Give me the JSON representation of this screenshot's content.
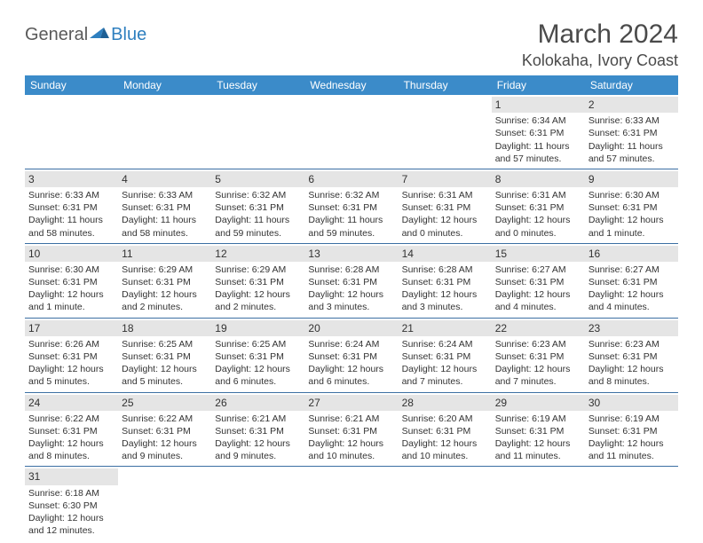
{
  "brand": {
    "part1": "General",
    "part2": "Blue"
  },
  "title": "March 2024",
  "location": "Kolokaha, Ivory Coast",
  "colors": {
    "header_bg": "#3b8bc9",
    "row_border": "#3b6fa3",
    "daynum_bg": "#e5e5e5",
    "text": "#333333",
    "title_text": "#4a4a4a",
    "brand_gray": "#5a5a5a",
    "brand_blue": "#2e7fbf"
  },
  "weekdays": [
    "Sunday",
    "Monday",
    "Tuesday",
    "Wednesday",
    "Thursday",
    "Friday",
    "Saturday"
  ],
  "weeks": [
    [
      null,
      null,
      null,
      null,
      null,
      {
        "n": "1",
        "sunrise": "Sunrise: 6:34 AM",
        "sunset": "Sunset: 6:31 PM",
        "day1": "Daylight: 11 hours",
        "day2": "and 57 minutes."
      },
      {
        "n": "2",
        "sunrise": "Sunrise: 6:33 AM",
        "sunset": "Sunset: 6:31 PM",
        "day1": "Daylight: 11 hours",
        "day2": "and 57 minutes."
      }
    ],
    [
      {
        "n": "3",
        "sunrise": "Sunrise: 6:33 AM",
        "sunset": "Sunset: 6:31 PM",
        "day1": "Daylight: 11 hours",
        "day2": "and 58 minutes."
      },
      {
        "n": "4",
        "sunrise": "Sunrise: 6:33 AM",
        "sunset": "Sunset: 6:31 PM",
        "day1": "Daylight: 11 hours",
        "day2": "and 58 minutes."
      },
      {
        "n": "5",
        "sunrise": "Sunrise: 6:32 AM",
        "sunset": "Sunset: 6:31 PM",
        "day1": "Daylight: 11 hours",
        "day2": "and 59 minutes."
      },
      {
        "n": "6",
        "sunrise": "Sunrise: 6:32 AM",
        "sunset": "Sunset: 6:31 PM",
        "day1": "Daylight: 11 hours",
        "day2": "and 59 minutes."
      },
      {
        "n": "7",
        "sunrise": "Sunrise: 6:31 AM",
        "sunset": "Sunset: 6:31 PM",
        "day1": "Daylight: 12 hours",
        "day2": "and 0 minutes."
      },
      {
        "n": "8",
        "sunrise": "Sunrise: 6:31 AM",
        "sunset": "Sunset: 6:31 PM",
        "day1": "Daylight: 12 hours",
        "day2": "and 0 minutes."
      },
      {
        "n": "9",
        "sunrise": "Sunrise: 6:30 AM",
        "sunset": "Sunset: 6:31 PM",
        "day1": "Daylight: 12 hours",
        "day2": "and 1 minute."
      }
    ],
    [
      {
        "n": "10",
        "sunrise": "Sunrise: 6:30 AM",
        "sunset": "Sunset: 6:31 PM",
        "day1": "Daylight: 12 hours",
        "day2": "and 1 minute."
      },
      {
        "n": "11",
        "sunrise": "Sunrise: 6:29 AM",
        "sunset": "Sunset: 6:31 PM",
        "day1": "Daylight: 12 hours",
        "day2": "and 2 minutes."
      },
      {
        "n": "12",
        "sunrise": "Sunrise: 6:29 AM",
        "sunset": "Sunset: 6:31 PM",
        "day1": "Daylight: 12 hours",
        "day2": "and 2 minutes."
      },
      {
        "n": "13",
        "sunrise": "Sunrise: 6:28 AM",
        "sunset": "Sunset: 6:31 PM",
        "day1": "Daylight: 12 hours",
        "day2": "and 3 minutes."
      },
      {
        "n": "14",
        "sunrise": "Sunrise: 6:28 AM",
        "sunset": "Sunset: 6:31 PM",
        "day1": "Daylight: 12 hours",
        "day2": "and 3 minutes."
      },
      {
        "n": "15",
        "sunrise": "Sunrise: 6:27 AM",
        "sunset": "Sunset: 6:31 PM",
        "day1": "Daylight: 12 hours",
        "day2": "and 4 minutes."
      },
      {
        "n": "16",
        "sunrise": "Sunrise: 6:27 AM",
        "sunset": "Sunset: 6:31 PM",
        "day1": "Daylight: 12 hours",
        "day2": "and 4 minutes."
      }
    ],
    [
      {
        "n": "17",
        "sunrise": "Sunrise: 6:26 AM",
        "sunset": "Sunset: 6:31 PM",
        "day1": "Daylight: 12 hours",
        "day2": "and 5 minutes."
      },
      {
        "n": "18",
        "sunrise": "Sunrise: 6:25 AM",
        "sunset": "Sunset: 6:31 PM",
        "day1": "Daylight: 12 hours",
        "day2": "and 5 minutes."
      },
      {
        "n": "19",
        "sunrise": "Sunrise: 6:25 AM",
        "sunset": "Sunset: 6:31 PM",
        "day1": "Daylight: 12 hours",
        "day2": "and 6 minutes."
      },
      {
        "n": "20",
        "sunrise": "Sunrise: 6:24 AM",
        "sunset": "Sunset: 6:31 PM",
        "day1": "Daylight: 12 hours",
        "day2": "and 6 minutes."
      },
      {
        "n": "21",
        "sunrise": "Sunrise: 6:24 AM",
        "sunset": "Sunset: 6:31 PM",
        "day1": "Daylight: 12 hours",
        "day2": "and 7 minutes."
      },
      {
        "n": "22",
        "sunrise": "Sunrise: 6:23 AM",
        "sunset": "Sunset: 6:31 PM",
        "day1": "Daylight: 12 hours",
        "day2": "and 7 minutes."
      },
      {
        "n": "23",
        "sunrise": "Sunrise: 6:23 AM",
        "sunset": "Sunset: 6:31 PM",
        "day1": "Daylight: 12 hours",
        "day2": "and 8 minutes."
      }
    ],
    [
      {
        "n": "24",
        "sunrise": "Sunrise: 6:22 AM",
        "sunset": "Sunset: 6:31 PM",
        "day1": "Daylight: 12 hours",
        "day2": "and 8 minutes."
      },
      {
        "n": "25",
        "sunrise": "Sunrise: 6:22 AM",
        "sunset": "Sunset: 6:31 PM",
        "day1": "Daylight: 12 hours",
        "day2": "and 9 minutes."
      },
      {
        "n": "26",
        "sunrise": "Sunrise: 6:21 AM",
        "sunset": "Sunset: 6:31 PM",
        "day1": "Daylight: 12 hours",
        "day2": "and 9 minutes."
      },
      {
        "n": "27",
        "sunrise": "Sunrise: 6:21 AM",
        "sunset": "Sunset: 6:31 PM",
        "day1": "Daylight: 12 hours",
        "day2": "and 10 minutes."
      },
      {
        "n": "28",
        "sunrise": "Sunrise: 6:20 AM",
        "sunset": "Sunset: 6:31 PM",
        "day1": "Daylight: 12 hours",
        "day2": "and 10 minutes."
      },
      {
        "n": "29",
        "sunrise": "Sunrise: 6:19 AM",
        "sunset": "Sunset: 6:31 PM",
        "day1": "Daylight: 12 hours",
        "day2": "and 11 minutes."
      },
      {
        "n": "30",
        "sunrise": "Sunrise: 6:19 AM",
        "sunset": "Sunset: 6:31 PM",
        "day1": "Daylight: 12 hours",
        "day2": "and 11 minutes."
      }
    ],
    [
      {
        "n": "31",
        "sunrise": "Sunrise: 6:18 AM",
        "sunset": "Sunset: 6:30 PM",
        "day1": "Daylight: 12 hours",
        "day2": "and 12 minutes."
      },
      null,
      null,
      null,
      null,
      null,
      null
    ]
  ]
}
